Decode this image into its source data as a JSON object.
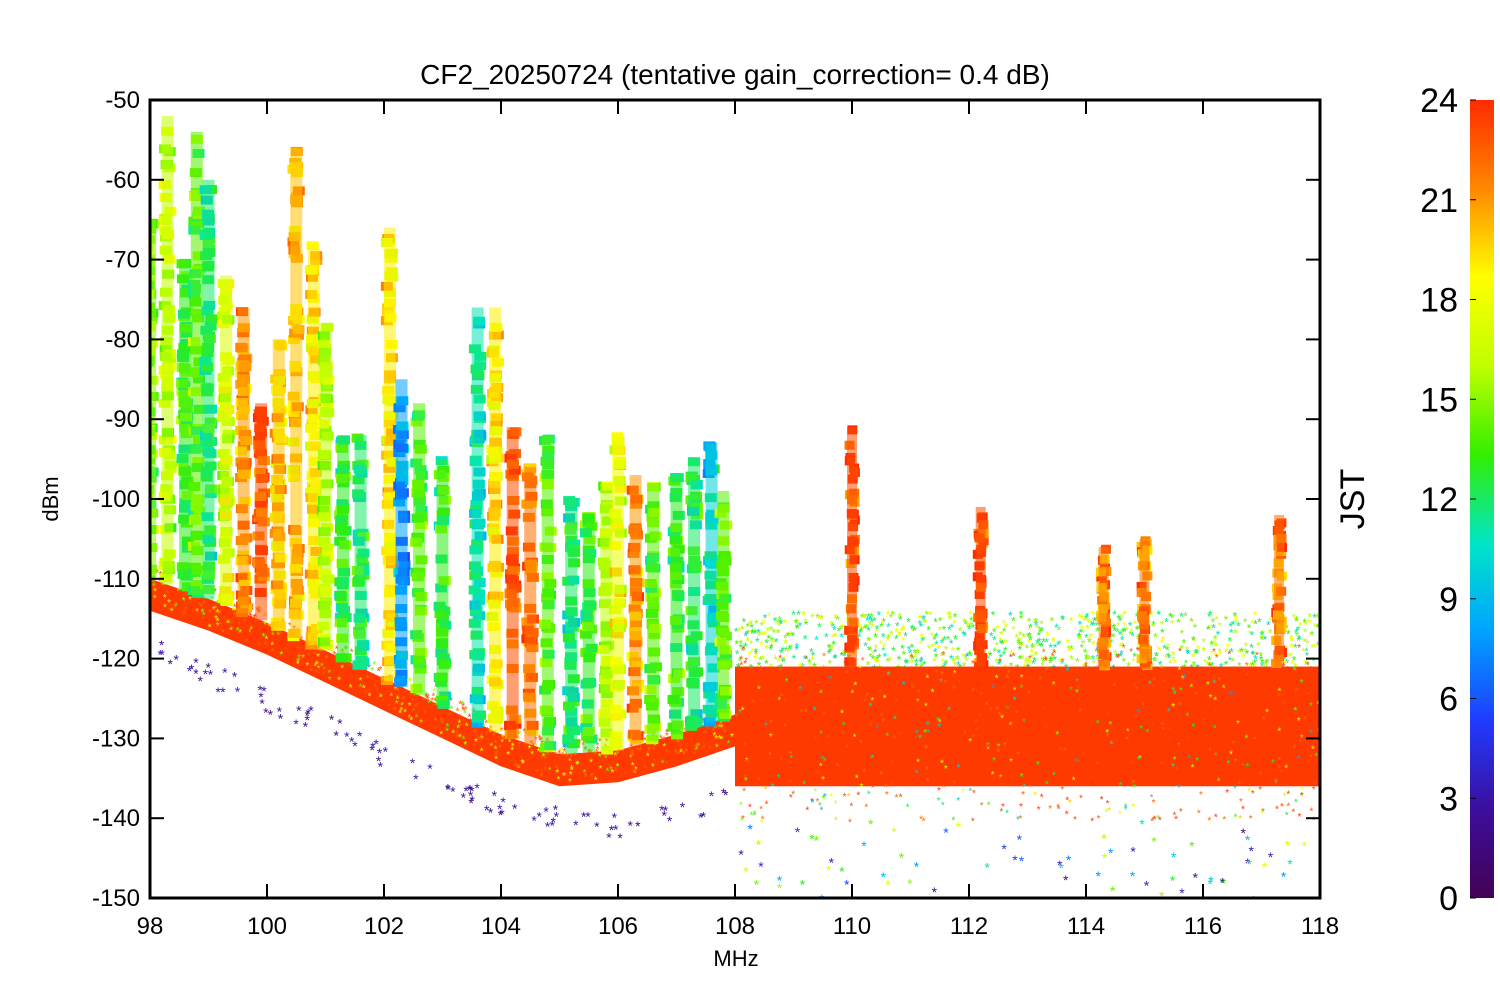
{
  "chart_data": {
    "type": "scatter",
    "title": "CF2_20250724 (tentative gain_correction=  0.4 dB)",
    "xlabel": "MHz",
    "ylabel": "dBm",
    "xlim": [
      98,
      118
    ],
    "ylim": [
      -150,
      -50
    ],
    "xticks": [
      "98",
      "100",
      "102",
      "104",
      "106",
      "108",
      "110",
      "112",
      "114",
      "116",
      "118"
    ],
    "yticks": [
      "-50",
      "-60",
      "-70",
      "-80",
      "-90",
      "-100",
      "-110",
      "-120",
      "-130",
      "-140",
      "-150"
    ],
    "colorbar": {
      "label": "JST",
      "range": [
        0,
        24
      ],
      "ticks": [
        "0",
        "3",
        "6",
        "9",
        "12",
        "15",
        "18",
        "21",
        "24"
      ],
      "colors": [
        "#440154",
        "#3b0f9d",
        "#1f3bff",
        "#00a2ff",
        "#00e5c8",
        "#33ee00",
        "#c0ff00",
        "#ffff00",
        "#ff8800",
        "#ff2a00"
      ]
    },
    "floor_red": [
      {
        "x": 98.0,
        "y": -110
      },
      {
        "x": 99.0,
        "y": -112.5
      },
      {
        "x": 100.0,
        "y": -115.5
      },
      {
        "x": 101.0,
        "y": -119
      },
      {
        "x": 102.0,
        "y": -122.5
      },
      {
        "x": 103.0,
        "y": -126
      },
      {
        "x": 104.0,
        "y": -129.5
      },
      {
        "x": 105.0,
        "y": -132
      },
      {
        "x": 106.0,
        "y": -131.5
      },
      {
        "x": 107.0,
        "y": -129.5
      },
      {
        "x": 108.0,
        "y": -127
      }
    ],
    "floor_purple": [
      {
        "x": 98.0,
        "y": -117
      },
      {
        "x": 99.0,
        "y": -121
      },
      {
        "x": 100.0,
        "y": -124
      },
      {
        "x": 101.0,
        "y": -127
      },
      {
        "x": 102.0,
        "y": -131
      },
      {
        "x": 103.0,
        "y": -134
      },
      {
        "x": 104.0,
        "y": -137
      },
      {
        "x": 105.0,
        "y": -139
      },
      {
        "x": 106.0,
        "y": -140
      },
      {
        "x": 107.0,
        "y": -138
      },
      {
        "x": 108.0,
        "y": -136
      }
    ],
    "band_high": {
      "x0": 108.0,
      "x1": 118.0,
      "y_top": -121,
      "y_bottom": -136,
      "green_top": -115
    },
    "signals": [
      {
        "f": 98.0,
        "top": -65,
        "jst": 15
      },
      {
        "f": 98.3,
        "top": -52,
        "jst": 16
      },
      {
        "f": 98.6,
        "top": -70,
        "jst": 13
      },
      {
        "f": 98.8,
        "top": -54,
        "jst": 14
      },
      {
        "f": 99.0,
        "top": -60,
        "jst": 12
      },
      {
        "f": 99.3,
        "top": -72,
        "jst": 17
      },
      {
        "f": 99.6,
        "top": -76,
        "jst": 21
      },
      {
        "f": 99.9,
        "top": -88,
        "jst": 23
      },
      {
        "f": 100.2,
        "top": -80,
        "jst": 20
      },
      {
        "f": 100.5,
        "top": -56,
        "jst": 20
      },
      {
        "f": 100.8,
        "top": -68,
        "jst": 19
      },
      {
        "f": 101.0,
        "top": -78,
        "jst": 16
      },
      {
        "f": 101.3,
        "top": -92,
        "jst": 13
      },
      {
        "f": 101.6,
        "top": -92,
        "jst": 12
      },
      {
        "f": 102.1,
        "top": -66,
        "jst": 19
      },
      {
        "f": 102.3,
        "top": -85,
        "jst": 8
      },
      {
        "f": 102.6,
        "top": -88,
        "jst": 14
      },
      {
        "f": 103.0,
        "top": -95,
        "jst": 13
      },
      {
        "f": 103.6,
        "top": -76,
        "jst": 11
      },
      {
        "f": 103.9,
        "top": -76,
        "jst": 19
      },
      {
        "f": 104.2,
        "top": -91,
        "jst": 23
      },
      {
        "f": 104.5,
        "top": -96,
        "jst": 22
      },
      {
        "f": 104.8,
        "top": -92,
        "jst": 14
      },
      {
        "f": 105.2,
        "top": -100,
        "jst": 12
      },
      {
        "f": 105.5,
        "top": -102,
        "jst": 13
      },
      {
        "f": 105.8,
        "top": -98,
        "jst": 16
      },
      {
        "f": 106.0,
        "top": -92,
        "jst": 18
      },
      {
        "f": 106.3,
        "top": -97,
        "jst": 21
      },
      {
        "f": 106.6,
        "top": -98,
        "jst": 14
      },
      {
        "f": 107.0,
        "top": -97,
        "jst": 13
      },
      {
        "f": 107.3,
        "top": -95,
        "jst": 12
      },
      {
        "f": 107.6,
        "top": -93,
        "jst": 10
      },
      {
        "f": 107.8,
        "top": -99,
        "jst": 14
      },
      {
        "f": 110.0,
        "top": -91,
        "jst": 23
      },
      {
        "f": 112.2,
        "top": -101,
        "jst": 23
      },
      {
        "f": 114.3,
        "top": -106,
        "jst": 22
      },
      {
        "f": 115.0,
        "top": -105,
        "jst": 22
      },
      {
        "f": 117.3,
        "top": -102,
        "jst": 22
      }
    ]
  }
}
